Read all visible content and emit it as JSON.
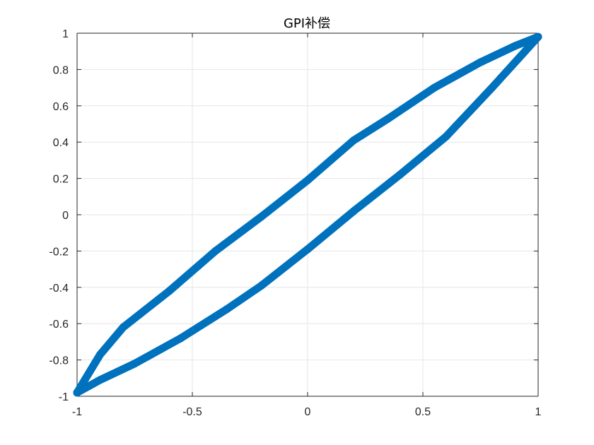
{
  "chart_data": {
    "type": "line",
    "title": "GPI补偿",
    "xlabel": "",
    "ylabel": "",
    "xlim": [
      -1,
      1
    ],
    "ylim": [
      -1,
      1
    ],
    "grid": true,
    "xticks": [
      -1,
      -0.5,
      0,
      0.5,
      1
    ],
    "xtick_labels": [
      "-1",
      "-0.5",
      "0",
      "0.5",
      "1"
    ],
    "yticks": [
      -1,
      -0.8,
      -0.6,
      -0.4,
      -0.2,
      0,
      0.2,
      0.4,
      0.6,
      0.8,
      1
    ],
    "ytick_labels": [
      "-1",
      "-0.8",
      "-0.6",
      "-0.4",
      "-0.2",
      "0",
      "0.2",
      "0.4",
      "0.6",
      "0.8",
      "1"
    ],
    "series": [
      {
        "color": "#0072BD",
        "x": [
          -1.0,
          -0.9,
          -0.75,
          -0.55,
          -0.35,
          -0.2,
          0.0,
          0.2,
          0.4,
          0.6,
          0.8,
          1.0
        ],
        "y": [
          -0.98,
          -0.91,
          -0.82,
          -0.68,
          -0.52,
          -0.39,
          -0.19,
          0.02,
          0.22,
          0.43,
          0.7,
          0.98
        ]
      },
      {
        "color": "#0072BD",
        "x": [
          1.0,
          0.9,
          0.75,
          0.55,
          0.35,
          0.2,
          0.0,
          -0.2,
          -0.4,
          -0.6,
          -0.8,
          -0.9,
          -1.0
        ],
        "y": [
          0.98,
          0.93,
          0.84,
          0.7,
          0.53,
          0.41,
          0.19,
          -0.01,
          -0.2,
          -0.42,
          -0.62,
          -0.77,
          -0.98
        ]
      }
    ]
  }
}
